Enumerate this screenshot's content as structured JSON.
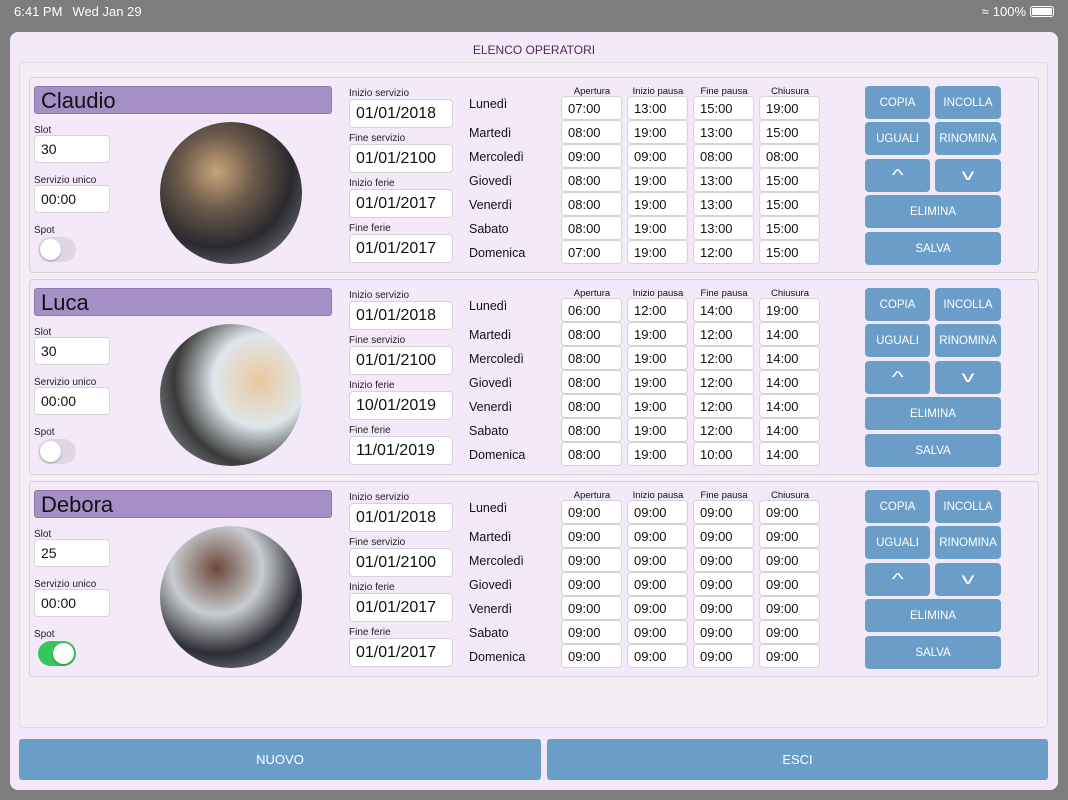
{
  "status": {
    "time": "6:41 PM",
    "date": "Wed Jan 29",
    "battery": "100%",
    "battery_level": 100
  },
  "title": "ELENCO OPERATORI",
  "labels": {
    "slot": "Slot",
    "servizio_unico": "Servizio unico",
    "spot": "Spot",
    "inizio_servizio": "Inizio servizio",
    "fine_servizio": "Fine servizio",
    "inizio_ferie": "Inizio ferie",
    "fine_ferie": "Fine ferie",
    "apertura": "Apertura",
    "inizio_pausa": "Inizio pausa",
    "fine_pausa": "Fine pausa",
    "chiusura": "Chiusura"
  },
  "days": [
    "Lunedì",
    "Martedì",
    "Mercoledì",
    "Giovedì",
    "Venerdì",
    "Sabato",
    "Domenica"
  ],
  "buttons": {
    "copia": "COPIA",
    "incolla": "INCOLLA",
    "uguali": "UGUALI",
    "rinomina": "RINOMINA",
    "elimina": "ELIMINA",
    "salva": "SALVA",
    "nuovo": "NUOVO",
    "esci": "ESCI"
  },
  "operators": [
    {
      "name": "Claudio",
      "slot": "30",
      "servizio_unico": "00:00",
      "spot": false,
      "inizio_servizio": "01/01/2018",
      "fine_servizio": "01/01/2100",
      "inizio_ferie": "01/01/2017",
      "fine_ferie": "01/01/2017",
      "hours": [
        [
          "07:00",
          "13:00",
          "15:00",
          "19:00"
        ],
        [
          "08:00",
          "19:00",
          "13:00",
          "15:00"
        ],
        [
          "09:00",
          "09:00",
          "08:00",
          "08:00"
        ],
        [
          "08:00",
          "19:00",
          "13:00",
          "15:00"
        ],
        [
          "08:00",
          "19:00",
          "13:00",
          "15:00"
        ],
        [
          "08:00",
          "19:00",
          "13:00",
          "15:00"
        ],
        [
          "07:00",
          "19:00",
          "12:00",
          "15:00"
        ]
      ]
    },
    {
      "name": "Luca",
      "slot": "30",
      "servizio_unico": "00:00",
      "spot": false,
      "inizio_servizio": "01/01/2018",
      "fine_servizio": "01/01/2100",
      "inizio_ferie": "10/01/2019",
      "fine_ferie": "11/01/2019",
      "hours": [
        [
          "06:00",
          "12:00",
          "14:00",
          "19:00"
        ],
        [
          "08:00",
          "19:00",
          "12:00",
          "14:00"
        ],
        [
          "08:00",
          "19:00",
          "12:00",
          "14:00"
        ],
        [
          "08:00",
          "19:00",
          "12:00",
          "14:00"
        ],
        [
          "08:00",
          "19:00",
          "12:00",
          "14:00"
        ],
        [
          "08:00",
          "19:00",
          "12:00",
          "14:00"
        ],
        [
          "08:00",
          "19:00",
          "10:00",
          "14:00"
        ]
      ]
    },
    {
      "name": "Debora",
      "slot": "25",
      "servizio_unico": "00:00",
      "spot": true,
      "inizio_servizio": "01/01/2018",
      "fine_servizio": "01/01/2100",
      "inizio_ferie": "01/01/2017",
      "fine_ferie": "01/01/2017",
      "hours": [
        [
          "09:00",
          "09:00",
          "09:00",
          "09:00"
        ],
        [
          "09:00",
          "09:00",
          "09:00",
          "09:00"
        ],
        [
          "09:00",
          "09:00",
          "09:00",
          "09:00"
        ],
        [
          "09:00",
          "09:00",
          "09:00",
          "09:00"
        ],
        [
          "09:00",
          "09:00",
          "09:00",
          "09:00"
        ],
        [
          "09:00",
          "09:00",
          "09:00",
          "09:00"
        ],
        [
          "09:00",
          "09:00",
          "09:00",
          "09:00"
        ]
      ]
    }
  ]
}
